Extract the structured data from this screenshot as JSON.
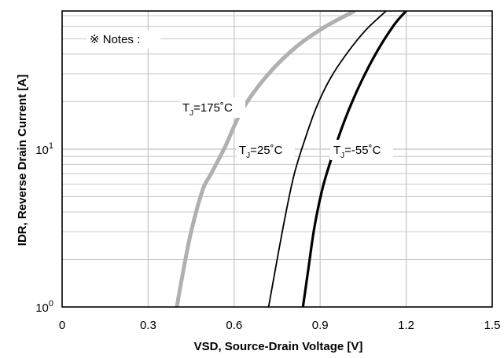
{
  "chart_data": {
    "type": "line",
    "xlabel": "VSD, Source-Drain Voltage [V]",
    "ylabel": "IDR, Reverse Drain Current [A]",
    "xlim": [
      0,
      1.5
    ],
    "ylim": [
      1,
      75
    ],
    "yscale": "log",
    "grid": true,
    "x_ticks": [
      0,
      0.3,
      0.6,
      0.9,
      1.2,
      1.5
    ],
    "x_tick_labels": [
      "0",
      "0.3",
      "0.6",
      "0.9",
      "1.2",
      "1.5"
    ],
    "y_ticks": [
      1,
      10
    ],
    "y_tick_labels": [
      {
        "base": "10",
        "exp": "0"
      },
      {
        "base": "10",
        "exp": "1"
      }
    ],
    "note": "※ Notes :",
    "series": [
      {
        "label_main": "T",
        "label_sub": "J",
        "label_rest": "=175˚C",
        "color": "#b0b0b0",
        "x": [
          0.4,
          0.42,
          0.45,
          0.49,
          0.52,
          0.57,
          0.63,
          0.72,
          0.82,
          0.92,
          1.02
        ],
        "y": [
          1,
          1.6,
          3.0,
          5.5,
          7.0,
          10.5,
          18,
          30,
          45,
          60,
          75
        ]
      },
      {
        "label_main": "T",
        "label_sub": "J",
        "label_rest": "=25˚C",
        "color": "#000000",
        "x": [
          0.72,
          0.75,
          0.78,
          0.81,
          0.85,
          0.89,
          0.94,
          1.0,
          1.06,
          1.13
        ],
        "y": [
          1,
          2.0,
          3.9,
          7.0,
          12,
          19,
          29,
          42,
          57,
          75
        ]
      },
      {
        "label_main": "T",
        "label_sub": "J",
        "label_rest": "=-55˚C",
        "color": "#000000",
        "x": [
          0.84,
          0.86,
          0.88,
          0.91,
          0.95,
          0.99,
          1.04,
          1.1,
          1.16,
          1.2
        ],
        "y": [
          1,
          1.8,
          3.2,
          5.8,
          10,
          16,
          26,
          42,
          62,
          75
        ]
      }
    ]
  }
}
